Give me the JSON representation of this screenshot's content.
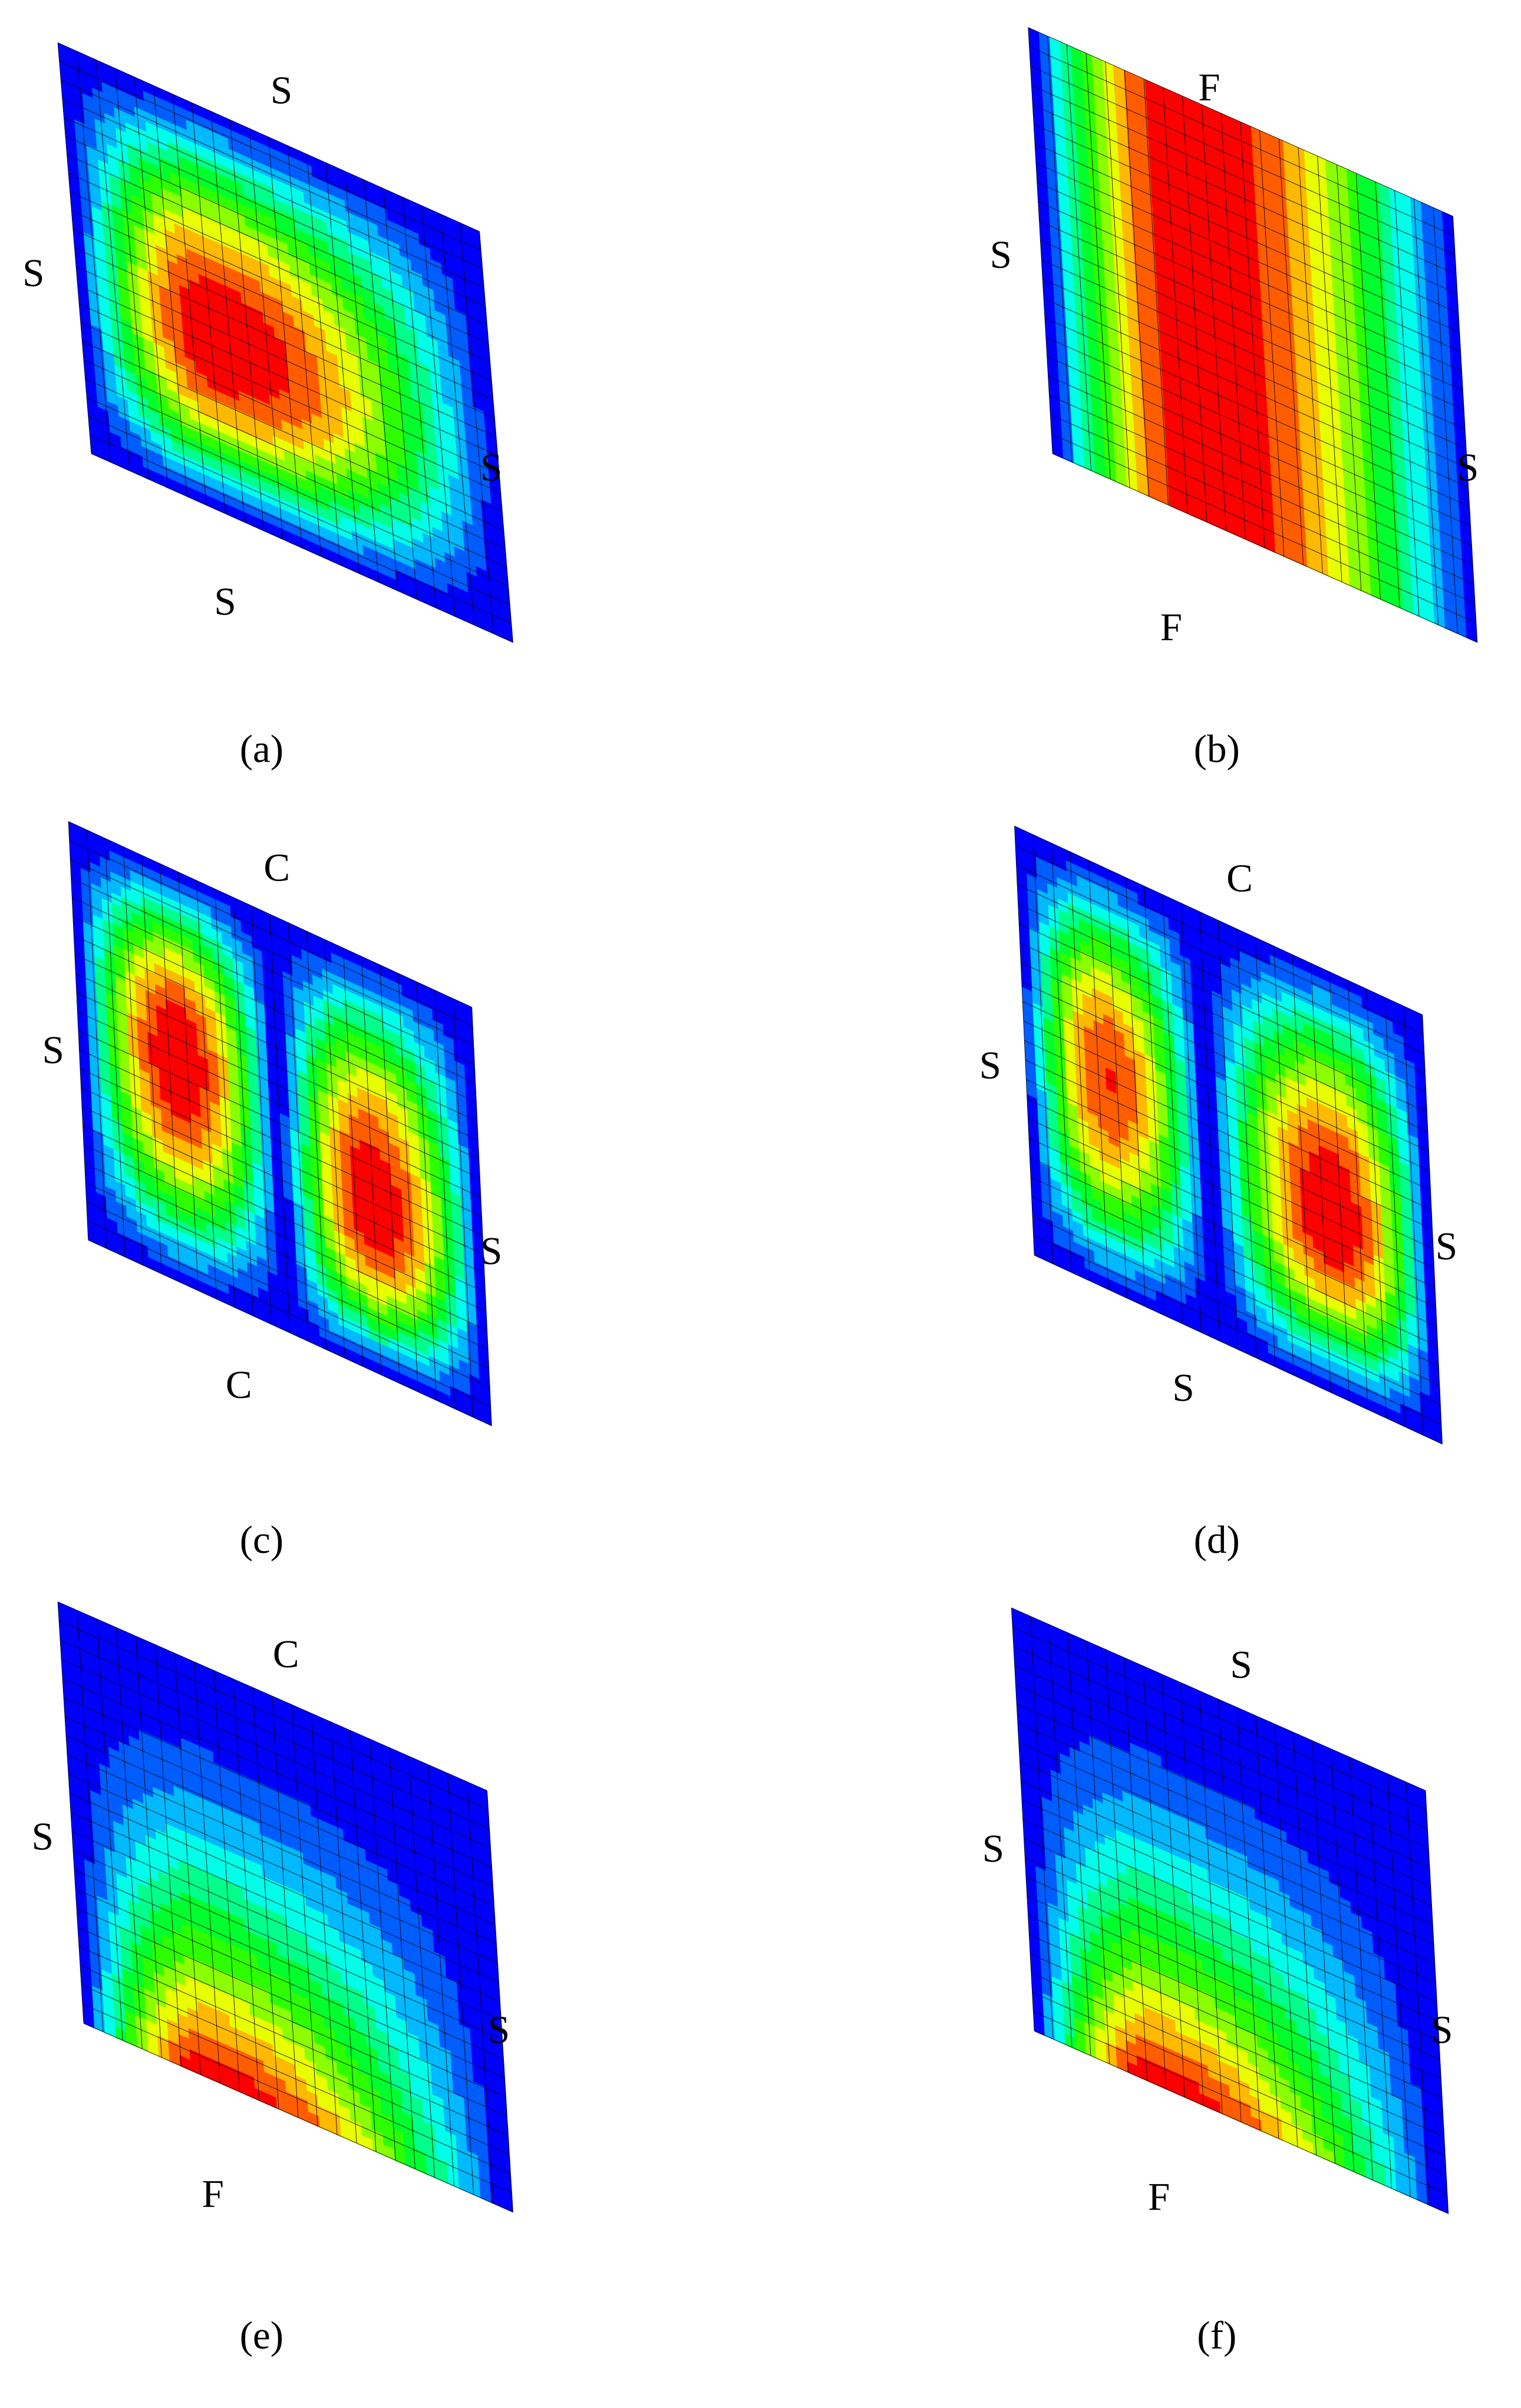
{
  "panels": [
    {
      "caption": "(a)",
      "edges": {
        "top": "S",
        "left": "S",
        "right": "S",
        "bottom": "S"
      }
    },
    {
      "caption": "(b)",
      "edges": {
        "top": "F",
        "left": "S",
        "right": "S",
        "bottom": "F"
      }
    },
    {
      "caption": "(c)",
      "edges": {
        "top": "C",
        "left": "S",
        "right": "S",
        "bottom": "C"
      }
    },
    {
      "caption": "(d)",
      "edges": {
        "top": "C",
        "left": "S",
        "right": "S",
        "bottom": "S"
      }
    },
    {
      "caption": "(e)",
      "edges": {
        "top": "C",
        "left": "S",
        "right": "S",
        "bottom": "F"
      }
    },
    {
      "caption": "(f)",
      "edges": {
        "top": "S",
        "left": "S",
        "right": "S",
        "bottom": "F"
      }
    }
  ]
}
